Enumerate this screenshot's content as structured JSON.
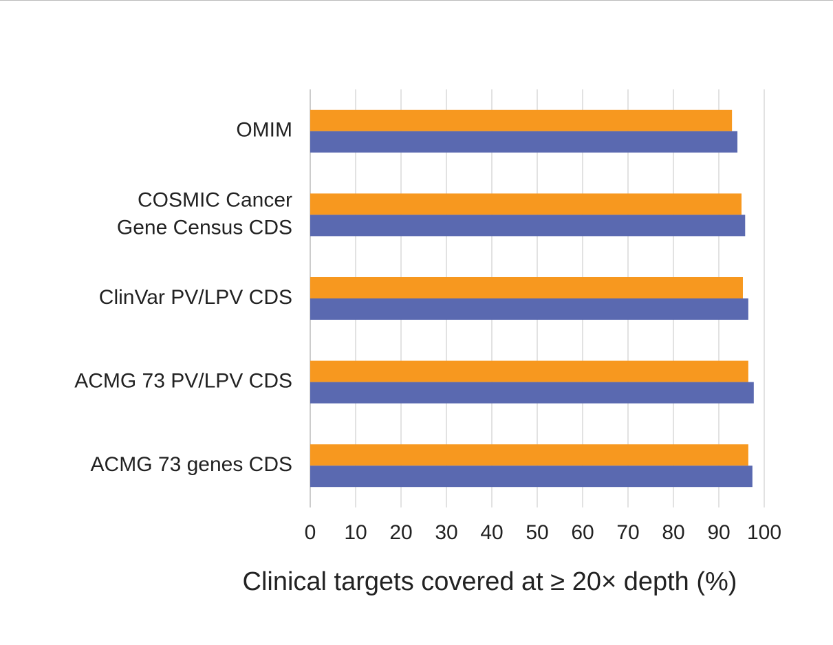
{
  "chart_data": {
    "type": "hbar",
    "x_label": "Clinical targets covered at ≥ 20× depth (%)",
    "categories": [
      "OMIM",
      "COSMIC Cancer\nGene Census CDS",
      "ClinVar PV/LPV CDS",
      "ACMG 73 PV/LPV CDS",
      "ACMG 73 genes CDS"
    ],
    "series": [
      {
        "color": "#f7981f",
        "values": [
          92.9,
          95.0,
          95.3,
          96.5,
          96.5
        ]
      },
      {
        "color": "#5a69b0",
        "values": [
          94.1,
          95.8,
          96.5,
          97.7,
          97.4
        ]
      }
    ],
    "xlim": [
      0,
      100
    ],
    "xticks": [
      0,
      10,
      20,
      30,
      40,
      50,
      60,
      70,
      80,
      90,
      100
    ],
    "grid": true
  }
}
